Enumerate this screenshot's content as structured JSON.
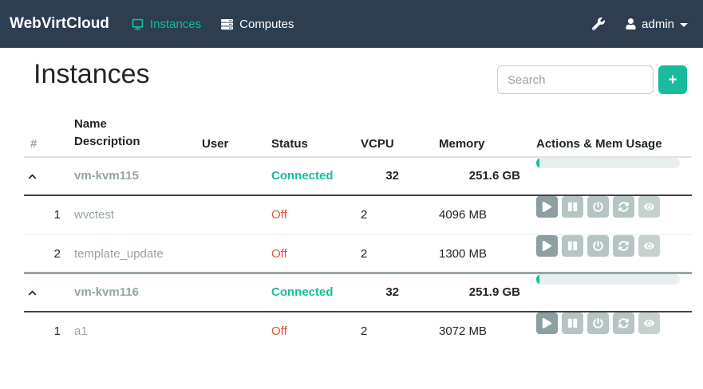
{
  "navbar": {
    "brand": "WebVirtCloud",
    "items": [
      {
        "label": "Instances",
        "icon": "desktop-icon",
        "active": true
      },
      {
        "label": "Computes",
        "icon": "server-icon",
        "active": false
      }
    ],
    "tools_icon": "wrench-icon",
    "user": {
      "icon": "user-icon",
      "name": "admin",
      "caret_icon": "caret-down-icon"
    }
  },
  "page": {
    "title": "Instances"
  },
  "toolbar": {
    "search_placeholder": "Search",
    "search_value": "",
    "add_button_label": "+"
  },
  "colors": {
    "navbar_bg": "#2c3e50",
    "accent_teal": "#18bc9c",
    "status_connected": "#18bc9c",
    "status_off": "#e74c3c",
    "name_gray": "#95a5a6"
  },
  "table": {
    "headers": {
      "number": "#",
      "name": "Name",
      "description": "Description",
      "user": "User",
      "status": "Status",
      "vcpu": "VCPU",
      "memory": "Memory",
      "actions": "Actions & Mem Usage"
    },
    "action_icons": [
      "play-icon",
      "pause-icon",
      "power-icon",
      "refresh-icon",
      "eye-icon"
    ],
    "groups": [
      {
        "host": {
          "name": "vm-kvm115",
          "status": "Connected",
          "vcpu": "32",
          "memory": "251.6 GB",
          "mem_usage_percent": 2
        },
        "instances": [
          {
            "number": "1",
            "name": "wvctest",
            "user": "",
            "status": "Off",
            "vcpu": "2",
            "memory": "4096 MB"
          },
          {
            "number": "2",
            "name": "template_update",
            "user": "",
            "status": "Off",
            "vcpu": "2",
            "memory": "1300 MB"
          }
        ]
      },
      {
        "host": {
          "name": "vm-kvm116",
          "status": "Connected",
          "vcpu": "32",
          "memory": "251.9 GB",
          "mem_usage_percent": 2
        },
        "instances": [
          {
            "number": "1",
            "name": "a1",
            "user": "",
            "status": "Off",
            "vcpu": "2",
            "memory": "3072 MB"
          }
        ]
      }
    ]
  }
}
